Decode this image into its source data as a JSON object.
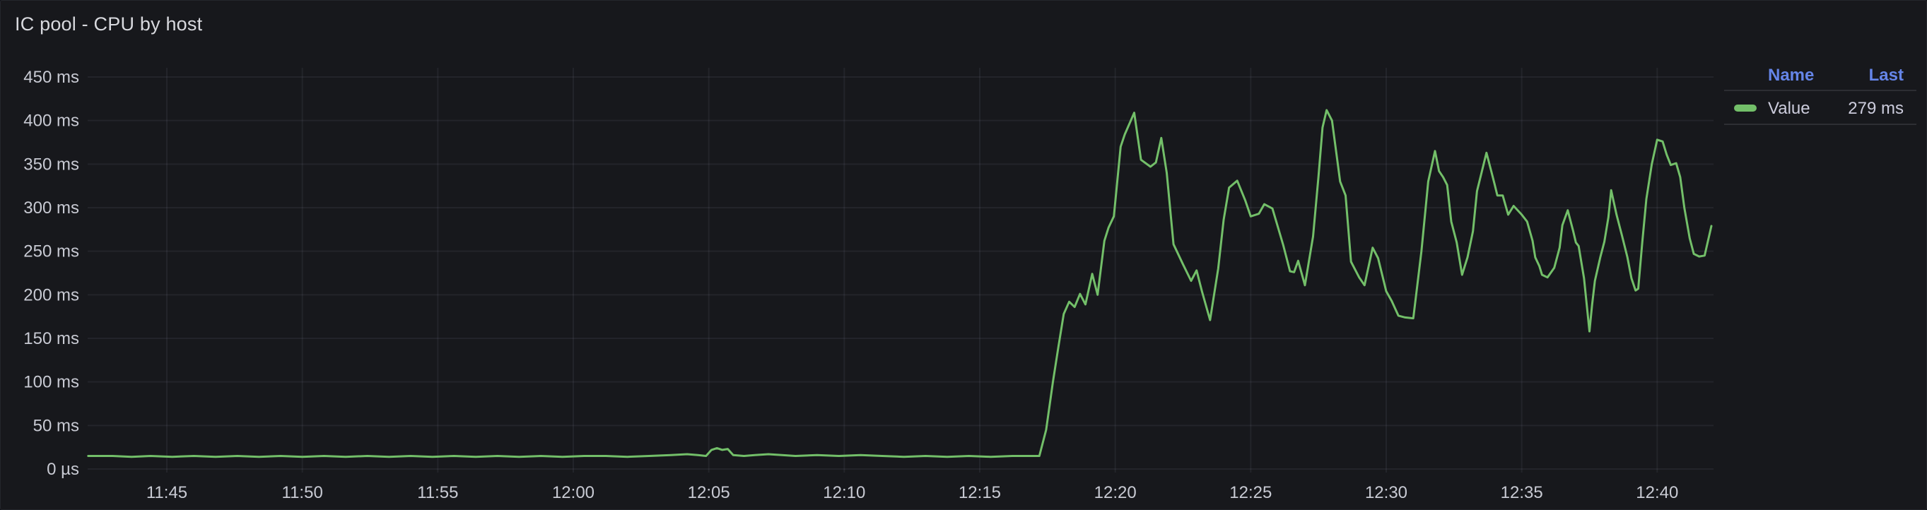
{
  "panel": {
    "title": "IC pool - CPU by host"
  },
  "legend": {
    "columns": [
      "Name",
      "Last"
    ],
    "rows": [
      {
        "name": "Value",
        "last": "279 ms",
        "color": "#73bf69"
      }
    ]
  },
  "colors": {
    "background": "#17181c",
    "border": "#24262c",
    "series_green": "#73bf69",
    "legend_header_blue": "#6585e8",
    "text_primary": "#d8d9de",
    "text_secondary": "#ccccdc",
    "axis_text": "#c8cad3",
    "grid": "rgba(204,204,220,0.07)"
  },
  "chart_data": {
    "type": "line",
    "title": "IC pool - CPU by host",
    "xlabel": "",
    "ylabel": "",
    "unit": "ms",
    "ylim": [
      0,
      450
    ],
    "grid": true,
    "legend_position": "right-top",
    "time_domain": [
      "11:42",
      "12:42"
    ],
    "x_ticks": [
      {
        "t": 3,
        "label": "11:45"
      },
      {
        "t": 8,
        "label": "11:50"
      },
      {
        "t": 13,
        "label": "11:55"
      },
      {
        "t": 18,
        "label": "12:00"
      },
      {
        "t": 23,
        "label": "12:05"
      },
      {
        "t": 28,
        "label": "12:10"
      },
      {
        "t": 33,
        "label": "12:15"
      },
      {
        "t": 38,
        "label": "12:20"
      },
      {
        "t": 43,
        "label": "12:25"
      },
      {
        "t": 48,
        "label": "12:30"
      },
      {
        "t": 53,
        "label": "12:35"
      },
      {
        "t": 58,
        "label": "12:40"
      }
    ],
    "y_ticks": [
      {
        "v": 0,
        "label": "0 µs"
      },
      {
        "v": 50,
        "label": "50 ms"
      },
      {
        "v": 100,
        "label": "100 ms"
      },
      {
        "v": 150,
        "label": "150 ms"
      },
      {
        "v": 200,
        "label": "200 ms"
      },
      {
        "v": 250,
        "label": "250 ms"
      },
      {
        "v": 300,
        "label": "300 ms"
      },
      {
        "v": 350,
        "label": "350 ms"
      },
      {
        "v": 400,
        "label": "400 ms"
      },
      {
        "v": 450,
        "label": "450 ms"
      }
    ],
    "series": [
      {
        "name": "Value",
        "color": "#73bf69",
        "last": "279 ms",
        "points": [
          [
            0.1,
            15
          ],
          [
            1,
            15
          ],
          [
            1.7,
            14
          ],
          [
            2.4,
            15
          ],
          [
            3.2,
            14
          ],
          [
            4,
            15
          ],
          [
            4.8,
            14
          ],
          [
            5.6,
            15
          ],
          [
            6.4,
            14
          ],
          [
            7.2,
            15
          ],
          [
            8,
            14
          ],
          [
            8.8,
            15
          ],
          [
            9.6,
            14
          ],
          [
            10.4,
            15
          ],
          [
            11.2,
            14
          ],
          [
            12,
            15
          ],
          [
            12.8,
            14
          ],
          [
            13.6,
            15
          ],
          [
            14.4,
            14
          ],
          [
            15.2,
            15
          ],
          [
            16,
            14
          ],
          [
            16.8,
            15
          ],
          [
            17.6,
            14
          ],
          [
            18.4,
            15
          ],
          [
            19.2,
            15
          ],
          [
            20,
            14
          ],
          [
            20.8,
            15
          ],
          [
            21.6,
            16
          ],
          [
            22.2,
            17
          ],
          [
            22.6,
            16
          ],
          [
            22.9,
            15
          ],
          [
            23.1,
            22
          ],
          [
            23.3,
            24
          ],
          [
            23.5,
            22
          ],
          [
            23.7,
            23
          ],
          [
            23.9,
            16
          ],
          [
            24.3,
            15
          ],
          [
            24.7,
            16
          ],
          [
            25.2,
            17
          ],
          [
            25.7,
            16
          ],
          [
            26.2,
            15
          ],
          [
            27,
            16
          ],
          [
            27.8,
            15
          ],
          [
            28.6,
            16
          ],
          [
            29.4,
            15
          ],
          [
            30.2,
            14
          ],
          [
            31,
            15
          ],
          [
            31.8,
            14
          ],
          [
            32.6,
            15
          ],
          [
            33.4,
            14
          ],
          [
            34.2,
            15
          ],
          [
            35.2,
            15
          ],
          [
            35.45,
            45
          ],
          [
            35.7,
            100
          ],
          [
            35.9,
            140
          ],
          [
            36.1,
            178
          ],
          [
            36.3,
            192
          ],
          [
            36.5,
            186
          ],
          [
            36.7,
            201
          ],
          [
            36.9,
            189
          ],
          [
            37.15,
            224
          ],
          [
            37.35,
            200
          ],
          [
            37.6,
            262
          ],
          [
            37.75,
            277
          ],
          [
            37.95,
            290
          ],
          [
            38.2,
            370
          ],
          [
            38.35,
            384
          ],
          [
            38.7,
            409
          ],
          [
            38.95,
            355
          ],
          [
            39.3,
            347
          ],
          [
            39.5,
            352
          ],
          [
            39.7,
            380
          ],
          [
            39.9,
            340
          ],
          [
            40.15,
            258
          ],
          [
            40.5,
            235
          ],
          [
            40.8,
            216
          ],
          [
            41,
            228
          ],
          [
            41.2,
            204
          ],
          [
            41.5,
            171
          ],
          [
            41.8,
            230
          ],
          [
            42,
            286
          ],
          [
            42.2,
            323
          ],
          [
            42.5,
            331
          ],
          [
            42.8,
            308
          ],
          [
            43,
            290
          ],
          [
            43.3,
            293
          ],
          [
            43.5,
            304
          ],
          [
            43.8,
            299
          ],
          [
            44.2,
            257
          ],
          [
            44.45,
            227
          ],
          [
            44.6,
            226
          ],
          [
            44.75,
            239
          ],
          [
            45,
            211
          ],
          [
            45.3,
            267
          ],
          [
            45.5,
            336
          ],
          [
            45.65,
            392
          ],
          [
            45.8,
            412
          ],
          [
            46,
            400
          ],
          [
            46.3,
            330
          ],
          [
            46.5,
            314
          ],
          [
            46.7,
            238
          ],
          [
            47,
            220
          ],
          [
            47.2,
            211
          ],
          [
            47.5,
            254
          ],
          [
            47.7,
            242
          ],
          [
            48,
            204
          ],
          [
            48.2,
            193
          ],
          [
            48.45,
            176
          ],
          [
            48.7,
            174
          ],
          [
            49,
            173
          ],
          [
            49.3,
            250
          ],
          [
            49.55,
            330
          ],
          [
            49.8,
            365
          ],
          [
            49.95,
            342
          ],
          [
            50.1,
            335
          ],
          [
            50.25,
            326
          ],
          [
            50.4,
            284
          ],
          [
            50.6,
            260
          ],
          [
            50.8,
            223
          ],
          [
            51,
            243
          ],
          [
            51.2,
            273
          ],
          [
            51.35,
            319
          ],
          [
            51.7,
            363
          ],
          [
            51.9,
            339
          ],
          [
            52,
            327
          ],
          [
            52.1,
            314
          ],
          [
            52.3,
            314
          ],
          [
            52.5,
            292
          ],
          [
            52.7,
            302
          ],
          [
            53,
            292
          ],
          [
            53.2,
            284
          ],
          [
            53.4,
            262
          ],
          [
            53.5,
            243
          ],
          [
            53.65,
            233
          ],
          [
            53.75,
            223
          ],
          [
            53.95,
            220
          ],
          [
            54.2,
            231
          ],
          [
            54.4,
            254
          ],
          [
            54.5,
            280
          ],
          [
            54.7,
            297
          ],
          [
            54.9,
            273
          ],
          [
            55,
            260
          ],
          [
            55.1,
            256
          ],
          [
            55.3,
            219
          ],
          [
            55.5,
            158
          ],
          [
            55.6,
            189
          ],
          [
            55.7,
            216
          ],
          [
            55.9,
            243
          ],
          [
            56.05,
            261
          ],
          [
            56.2,
            289
          ],
          [
            56.3,
            320
          ],
          [
            56.5,
            292
          ],
          [
            56.7,
            268
          ],
          [
            56.9,
            243
          ],
          [
            57.05,
            219
          ],
          [
            57.2,
            205
          ],
          [
            57.3,
            207
          ],
          [
            57.45,
            260
          ],
          [
            57.6,
            310
          ],
          [
            57.8,
            350
          ],
          [
            58,
            378
          ],
          [
            58.2,
            376
          ],
          [
            58.35,
            361
          ],
          [
            58.5,
            349
          ],
          [
            58.7,
            351
          ],
          [
            58.85,
            335
          ],
          [
            59,
            300
          ],
          [
            59.2,
            265
          ],
          [
            59.35,
            247
          ],
          [
            59.55,
            244
          ],
          [
            59.75,
            245
          ],
          [
            60,
            279
          ]
        ]
      }
    ]
  }
}
